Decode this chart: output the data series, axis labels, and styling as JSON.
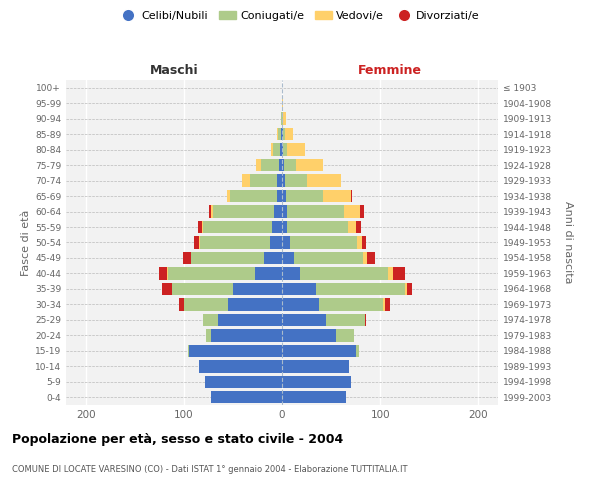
{
  "age_groups": [
    "0-4",
    "5-9",
    "10-14",
    "15-19",
    "20-24",
    "25-29",
    "30-34",
    "35-39",
    "40-44",
    "45-49",
    "50-54",
    "55-59",
    "60-64",
    "65-69",
    "70-74",
    "75-79",
    "80-84",
    "85-89",
    "90-94",
    "95-99",
    "100+"
  ],
  "birth_years": [
    "1999-2003",
    "1994-1998",
    "1989-1993",
    "1984-1988",
    "1979-1983",
    "1974-1978",
    "1969-1973",
    "1964-1968",
    "1959-1963",
    "1954-1958",
    "1949-1953",
    "1944-1948",
    "1939-1943",
    "1934-1938",
    "1929-1933",
    "1924-1928",
    "1919-1923",
    "1914-1918",
    "1909-1913",
    "1904-1908",
    "≤ 1903"
  ],
  "maschi": {
    "celibi": [
      72,
      78,
      85,
      95,
      72,
      65,
      55,
      50,
      28,
      18,
      12,
      10,
      8,
      5,
      5,
      3,
      2,
      1,
      0,
      0,
      0
    ],
    "coniugati": [
      0,
      0,
      0,
      1,
      5,
      15,
      45,
      62,
      88,
      75,
      72,
      70,
      62,
      48,
      28,
      18,
      7,
      3,
      1,
      0,
      0
    ],
    "vedovi": [
      0,
      0,
      0,
      0,
      0,
      0,
      0,
      0,
      1,
      0,
      1,
      1,
      2,
      3,
      8,
      5,
      2,
      1,
      0,
      0,
      0
    ],
    "divorziati": [
      0,
      0,
      0,
      0,
      0,
      0,
      5,
      10,
      8,
      8,
      5,
      5,
      2,
      0,
      0,
      0,
      0,
      0,
      0,
      0,
      0
    ]
  },
  "femmine": {
    "nubili": [
      65,
      70,
      68,
      75,
      55,
      45,
      38,
      35,
      18,
      12,
      8,
      5,
      5,
      4,
      3,
      2,
      1,
      1,
      0,
      0,
      0
    ],
    "coniugate": [
      0,
      0,
      0,
      3,
      18,
      40,
      65,
      90,
      90,
      70,
      68,
      62,
      58,
      38,
      22,
      12,
      4,
      2,
      1,
      0,
      0
    ],
    "vedove": [
      0,
      0,
      0,
      0,
      0,
      0,
      2,
      2,
      5,
      5,
      5,
      8,
      16,
      28,
      35,
      28,
      18,
      8,
      3,
      1,
      0
    ],
    "divorziate": [
      0,
      0,
      0,
      0,
      0,
      1,
      5,
      5,
      12,
      8,
      5,
      5,
      5,
      1,
      0,
      0,
      0,
      0,
      0,
      0,
      0
    ]
  },
  "colors": {
    "celibi_nubili": "#4472C4",
    "coniugati": "#AECB8A",
    "vedovi": "#FFD06A",
    "divorziati": "#CC2222"
  },
  "xlim": 220,
  "title": "Popolazione per età, sesso e stato civile - 2004",
  "subtitle": "COMUNE DI LOCATE VARESINO (CO) - Dati ISTAT 1° gennaio 2004 - Elaborazione TUTTITALIA.IT",
  "ylabel_left": "Fasce di età",
  "ylabel_right": "Anni di nascita",
  "xlabel_maschi": "Maschi",
  "xlabel_femmine": "Femmine",
  "legend_labels": [
    "Celibi/Nubili",
    "Coniugati/e",
    "Vedovi/e",
    "Divorziati/e"
  ],
  "bg_color": "#FFFFFF",
  "plot_bg_color": "#F2F2F2"
}
